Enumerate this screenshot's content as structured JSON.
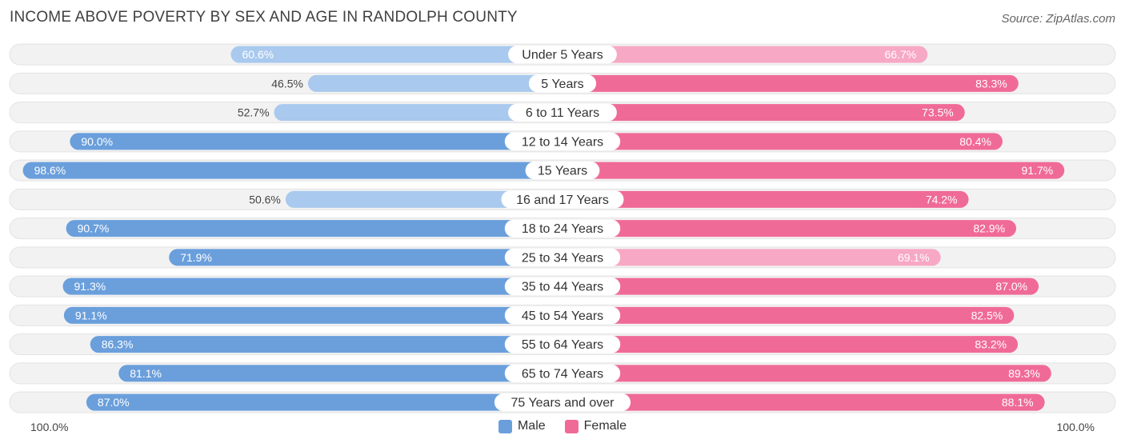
{
  "title": "INCOME ABOVE POVERTY BY SEX AND AGE IN RANDOLPH COUNTY",
  "source": "Source: ZipAtlas.com",
  "axis": {
    "left_label": "100.0%",
    "right_label": "100.0%"
  },
  "legend": [
    {
      "name": "Male",
      "color": "#6a9fdc"
    },
    {
      "name": "Female",
      "color": "#f06a98"
    }
  ],
  "chart_data": {
    "type": "bar",
    "orientation": "horizontal-diverging",
    "categories": [
      "Under 5 Years",
      "5 Years",
      "6 to 11 Years",
      "12 to 14 Years",
      "15 Years",
      "16 and 17 Years",
      "18 to 24 Years",
      "25 to 34 Years",
      "35 to 44 Years",
      "45 to 54 Years",
      "55 to 64 Years",
      "65 to 74 Years",
      "75 Years and over"
    ],
    "series": [
      {
        "name": "Male",
        "values": [
          60.6,
          46.5,
          52.7,
          90.0,
          98.6,
          50.6,
          90.7,
          71.9,
          91.3,
          91.1,
          86.3,
          81.1,
          87.0
        ],
        "labels": [
          "60.6%",
          "46.5%",
          "52.7%",
          "90.0%",
          "98.6%",
          "50.6%",
          "90.7%",
          "71.9%",
          "91.3%",
          "91.1%",
          "86.3%",
          "81.1%",
          "87.0%"
        ]
      },
      {
        "name": "Female",
        "values": [
          66.7,
          83.3,
          73.5,
          80.4,
          91.7,
          74.2,
          82.9,
          69.1,
          87.0,
          82.5,
          83.2,
          89.3,
          88.1
        ],
        "labels": [
          "66.7%",
          "83.3%",
          "73.5%",
          "80.4%",
          "91.7%",
          "74.2%",
          "82.9%",
          "69.1%",
          "87.0%",
          "82.5%",
          "83.2%",
          "89.3%",
          "88.1%"
        ]
      }
    ],
    "xlim": [
      0,
      100
    ],
    "colors": {
      "male_dark": "#6a9fdc",
      "male_light": "#a9c9ee",
      "female_dark": "#f06a98",
      "female_light": "#f7a8c4",
      "track": "#f0f0f0"
    },
    "legend_position": "bottom-center"
  }
}
